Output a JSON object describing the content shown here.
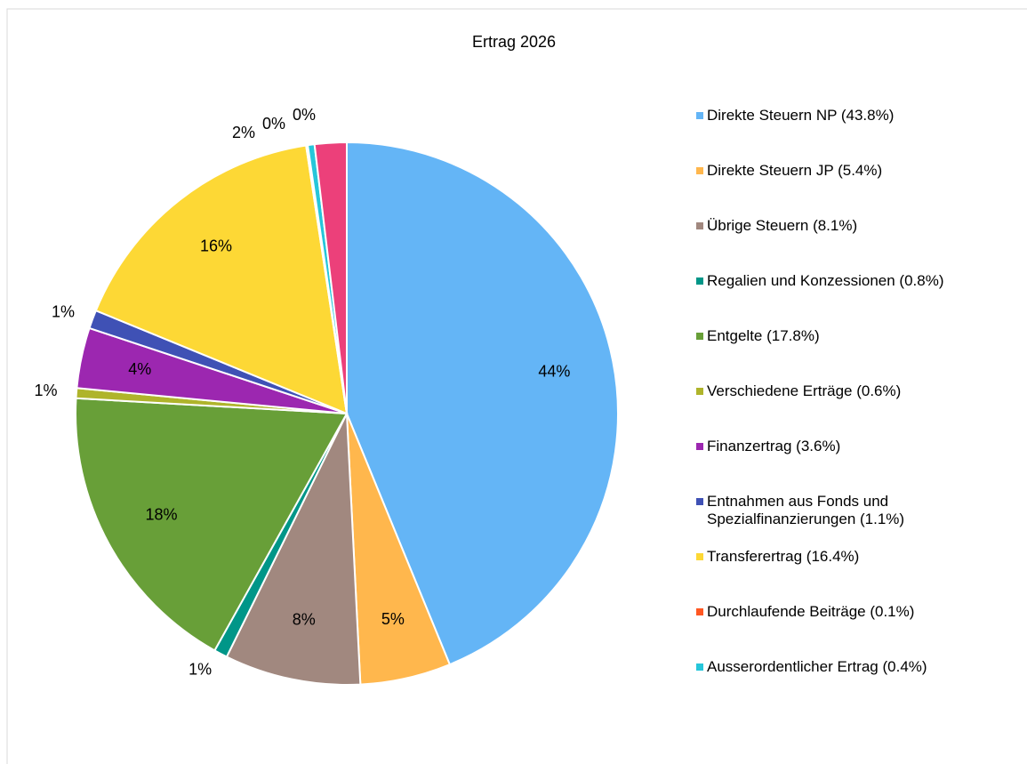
{
  "chart_data": {
    "type": "pie",
    "title": "Ertrag 2026",
    "categories": [
      "Direkte Steuern NP (43.8%)",
      "Direkte Steuern JP (5.4%)",
      "Übrige Steuern (8.1%)",
      "Regalien und Konzessionen (0.8%)",
      "Entgelte (17.8%)",
      "Verschiedene Erträge (0.6%)",
      "Finanzertrag (3.6%)",
      "Entnahmen aus Fonds und Spezialfinanzierungen (1.1%)",
      "Transferertrag (16.4%)",
      "Durchlaufende Beiträge (0.1%)",
      "Ausserordentlicher Ertrag (0.4%)",
      null
    ],
    "values": [
      43.8,
      5.4,
      8.1,
      0.8,
      17.8,
      0.6,
      3.6,
      1.1,
      16.4,
      0.1,
      0.4,
      1.9
    ],
    "value_labels": [
      "44%",
      "5%",
      "8%",
      "1%",
      "18%",
      "1%",
      "4%",
      "1%",
      "16%",
      "0%",
      "0%",
      "2%"
    ],
    "colors": [
      "#64b5f6",
      "#ffb74d",
      "#a1887f",
      "#009688",
      "#689f38",
      "#afb42b",
      "#9c27b0",
      "#3f51b5",
      "#fdd835",
      "#ff5722",
      "#26c6da",
      "#ec407a"
    ],
    "legend": "right"
  }
}
